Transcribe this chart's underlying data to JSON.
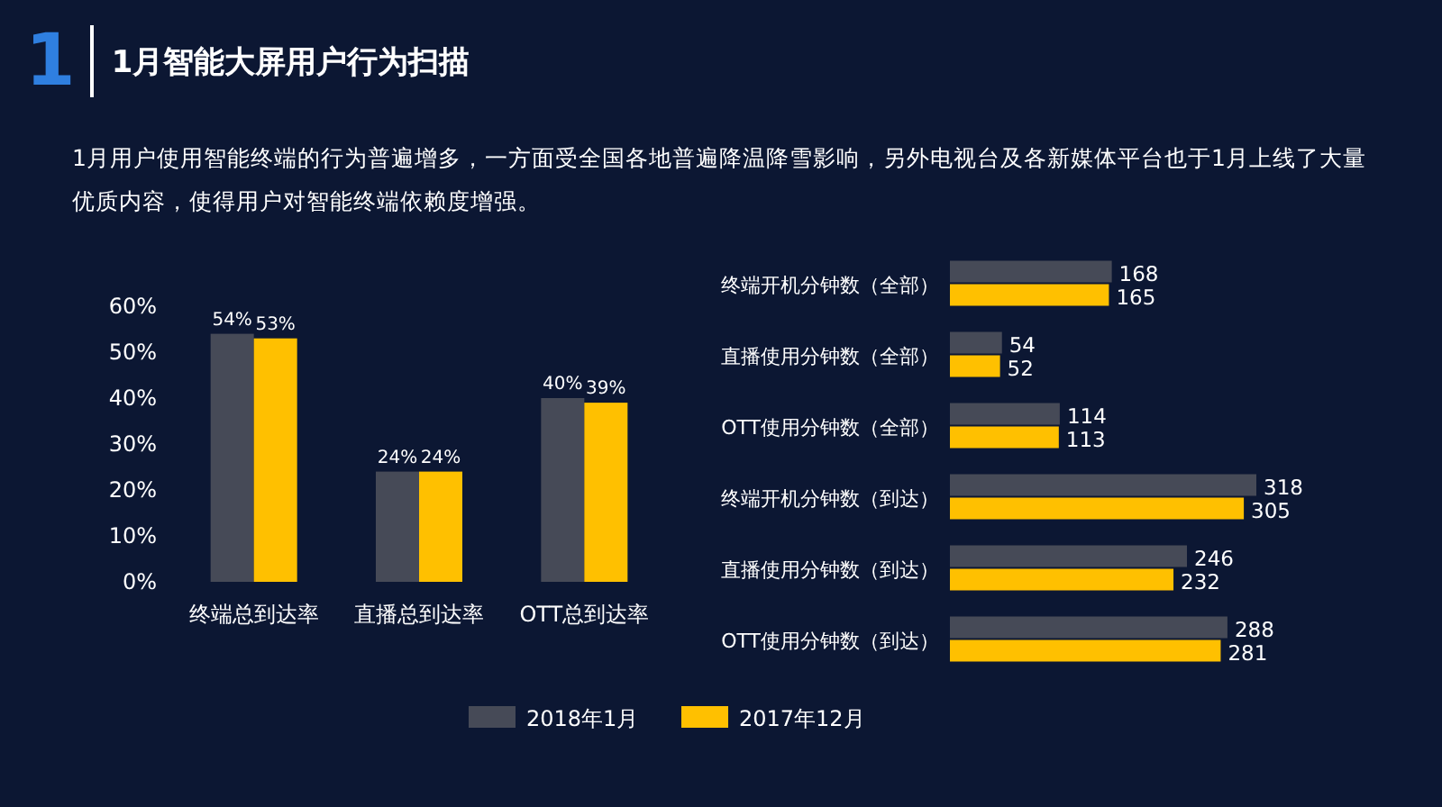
{
  "chart_data": [
    {
      "type": "bar",
      "title": "1月智能大屏用户行为扫描",
      "subtitle": "1月用户使用智能终端的行为普遍增多，一方面受全国各地普遍降温降雪影响，另外电视台及各新媒体平台也于1月上线了大量优质内容，使得用户对智能终端依赖度增强。",
      "annotations": [
        "1"
      ],
      "categories": [
        "终端总到达率",
        "直播总到达率",
        "OTT总到达率"
      ],
      "series": [
        {
          "name": "2018年1月",
          "color": "#464a57",
          "values": [
            54,
            24,
            40
          ],
          "value_labels": [
            "54%",
            "24%",
            "40%"
          ]
        },
        {
          "name": "2017年12月",
          "color": "#ffc000",
          "values": [
            53,
            24,
            39
          ],
          "value_labels": [
            "53%",
            "24%",
            "39%"
          ]
        }
      ],
      "ylim": [
        0,
        60
      ],
      "yticks": [
        {
          "value": 0,
          "label": "0%"
        },
        {
          "value": 10,
          "label": "10%"
        },
        {
          "value": 20,
          "label": "20%"
        },
        {
          "value": 30,
          "label": "30%"
        },
        {
          "value": 40,
          "label": "40%"
        },
        {
          "value": 50,
          "label": "50%"
        },
        {
          "value": 60,
          "label": "60%"
        }
      ],
      "grid": false,
      "legend": "bottom"
    },
    {
      "type": "bar",
      "orientation": "horizontal",
      "categories": [
        "终端开机分钟数（全部）",
        "直播使用分钟数（全部）",
        "OTT使用分钟数（全部）",
        "终端开机分钟数（到达）",
        "直播使用分钟数（到达）",
        "OTT使用分钟数（到达）"
      ],
      "series": [
        {
          "color": "#464a57",
          "values": [
            168,
            54,
            114,
            318,
            246,
            288
          ]
        },
        {
          "color": "#ffc000",
          "values": [
            165,
            52,
            113,
            305,
            232,
            281
          ]
        }
      ],
      "data_labels": true
    }
  ]
}
